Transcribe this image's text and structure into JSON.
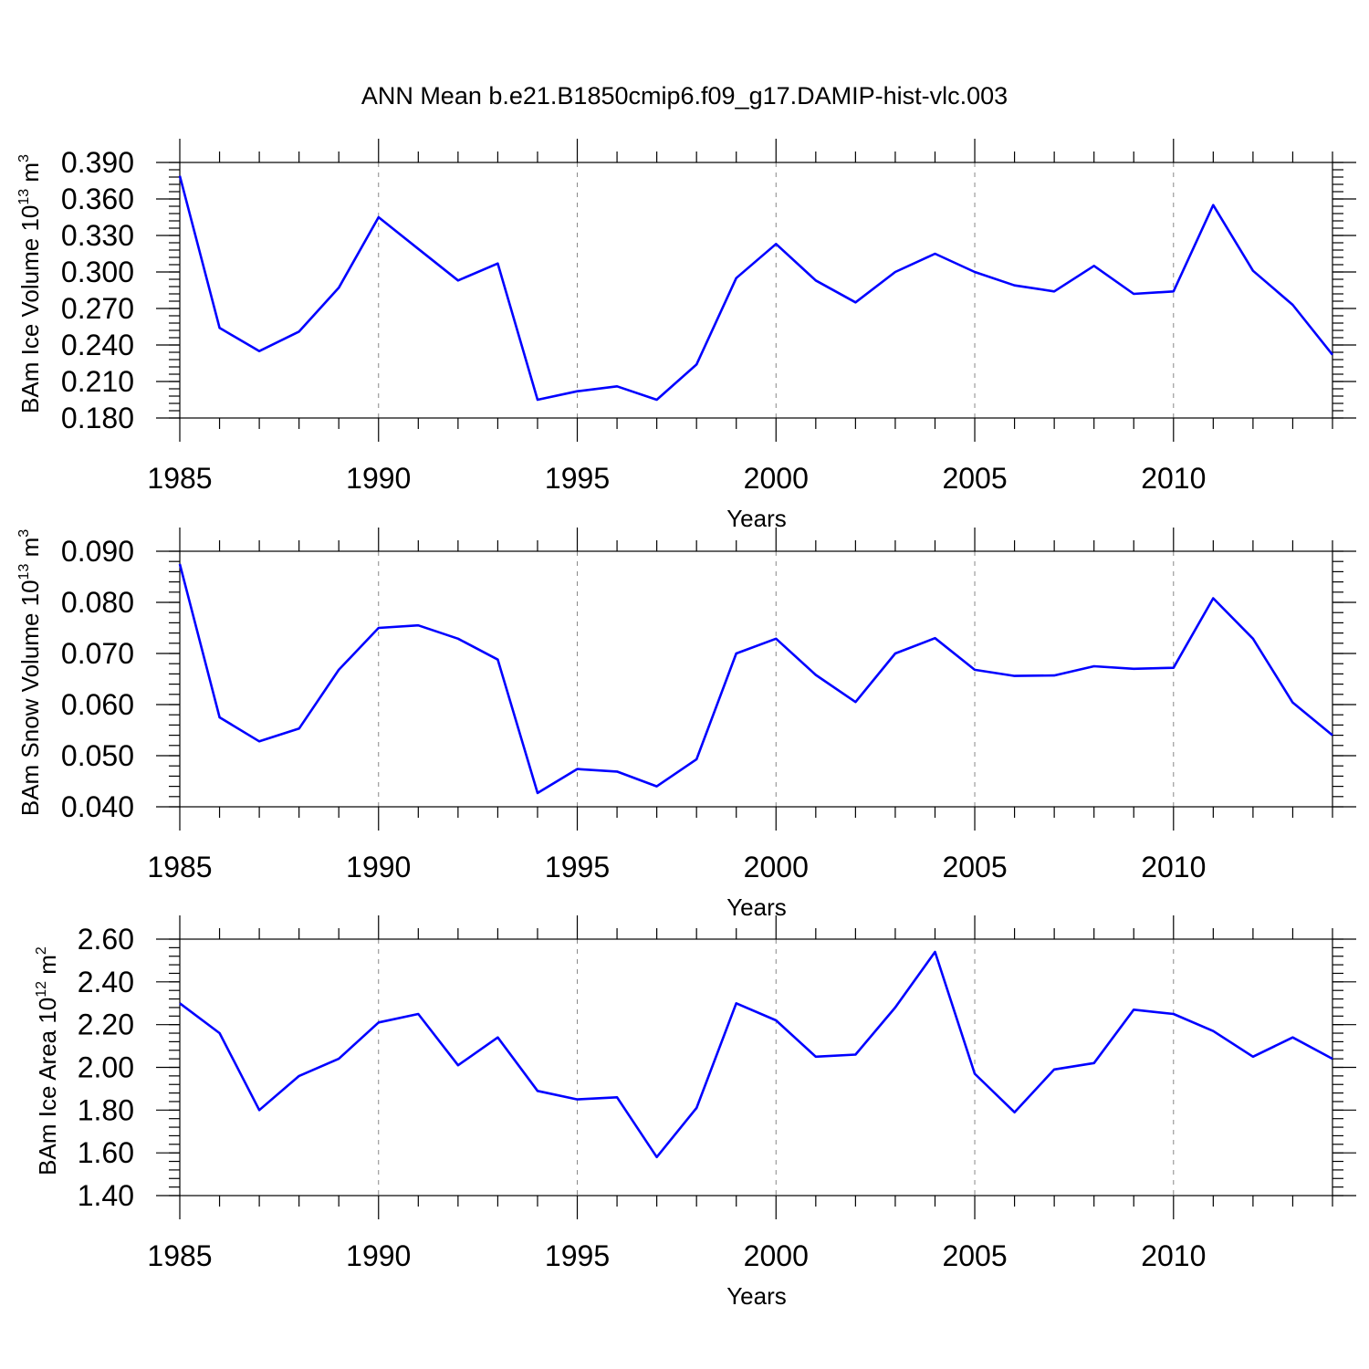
{
  "title": "ANN Mean b.e21.B1850cmip6.f09_g17.DAMIP-hist-vlc.003",
  "line_color": "#0000ff",
  "chart_data": [
    {
      "type": "line",
      "ylabel_main": "BAm Ice Volume 10",
      "ylabel_exp": "13",
      "ylabel_unit": " m",
      "ylabel_unit_exp": "3",
      "xlabel": "Years",
      "xlim": [
        1985,
        2014
      ],
      "ylim": [
        0.18,
        0.39
      ],
      "x_ticks": [
        1985,
        1990,
        1995,
        2000,
        2005,
        2010
      ],
      "y_ticks": [
        0.18,
        0.21,
        0.24,
        0.27,
        0.3,
        0.33,
        0.36,
        0.39
      ],
      "y_tick_labels": [
        "0.180",
        "0.210",
        "0.240",
        "0.270",
        "0.300",
        "0.330",
        "0.360",
        "0.390"
      ],
      "y_minor_step": 0.006,
      "grid": "vertical dashed at major x ticks",
      "series": [
        {
          "x": [
            1985,
            1986,
            1987,
            1988,
            1989,
            1990,
            1991,
            1992,
            1993,
            1994,
            1995,
            1996,
            1997,
            1998,
            1999,
            2000,
            2001,
            2002,
            2003,
            2004,
            2005,
            2006,
            2007,
            2008,
            2009,
            2010,
            2011,
            2012,
            2013,
            2014
          ],
          "values": [
            0.379,
            0.254,
            0.235,
            0.251,
            0.287,
            0.345,
            0.319,
            0.293,
            0.307,
            0.195,
            0.202,
            0.206,
            0.195,
            0.224,
            0.295,
            0.323,
            0.293,
            0.275,
            0.3,
            0.315,
            0.3,
            0.289,
            0.284,
            0.305,
            0.282,
            0.284,
            0.355,
            0.301,
            0.273,
            0.232
          ]
        }
      ]
    },
    {
      "type": "line",
      "ylabel_main": "BAm Snow Volume 10",
      "ylabel_exp": "13",
      "ylabel_unit": " m",
      "ylabel_unit_exp": "3",
      "xlabel": "Years",
      "xlim": [
        1985,
        2014
      ],
      "ylim": [
        0.04,
        0.09
      ],
      "x_ticks": [
        1985,
        1990,
        1995,
        2000,
        2005,
        2010
      ],
      "y_ticks": [
        0.04,
        0.05,
        0.06,
        0.07,
        0.08,
        0.09
      ],
      "y_tick_labels": [
        "0.040",
        "0.050",
        "0.060",
        "0.070",
        "0.080",
        "0.090"
      ],
      "y_minor_step": 0.002,
      "grid": "vertical dashed at major x ticks",
      "series": [
        {
          "x": [
            1985,
            1986,
            1987,
            1988,
            1989,
            1990,
            1991,
            1992,
            1993,
            1994,
            1995,
            1996,
            1997,
            1998,
            1999,
            2000,
            2001,
            2002,
            2003,
            2004,
            2005,
            2006,
            2007,
            2008,
            2009,
            2010,
            2011,
            2012,
            2013,
            2014
          ],
          "values": [
            0.0875,
            0.0575,
            0.0528,
            0.0553,
            0.0668,
            0.075,
            0.0755,
            0.0729,
            0.0688,
            0.0427,
            0.0474,
            0.0469,
            0.044,
            0.0493,
            0.07,
            0.0729,
            0.0658,
            0.0605,
            0.07,
            0.073,
            0.0668,
            0.0656,
            0.0657,
            0.0675,
            0.067,
            0.0672,
            0.0808,
            0.0729,
            0.0604,
            0.054
          ]
        }
      ]
    },
    {
      "type": "line",
      "ylabel_main": "BAm Ice Area 10",
      "ylabel_exp": "12",
      "ylabel_unit": " m",
      "ylabel_unit_exp": "2",
      "xlabel": "Years",
      "xlim": [
        1985,
        2014
      ],
      "ylim": [
        1.4,
        2.6
      ],
      "x_ticks": [
        1985,
        1990,
        1995,
        2000,
        2005,
        2010
      ],
      "y_ticks": [
        1.4,
        1.6,
        1.8,
        2.0,
        2.2,
        2.4,
        2.6
      ],
      "y_tick_labels": [
        "1.40",
        "1.60",
        "1.80",
        "2.00",
        "2.20",
        "2.40",
        "2.60"
      ],
      "y_minor_step": 0.04,
      "grid": "vertical dashed at major x ticks",
      "series": [
        {
          "x": [
            1985,
            1986,
            1987,
            1988,
            1989,
            1990,
            1991,
            1992,
            1993,
            1994,
            1995,
            1996,
            1997,
            1998,
            1999,
            2000,
            2001,
            2002,
            2003,
            2004,
            2005,
            2006,
            2007,
            2008,
            2009,
            2010,
            2011,
            2012,
            2013,
            2014
          ],
          "values": [
            2.3,
            2.16,
            1.8,
            1.96,
            2.04,
            2.21,
            2.25,
            2.01,
            2.14,
            1.89,
            1.85,
            1.86,
            1.58,
            1.81,
            2.3,
            2.22,
            2.05,
            2.06,
            2.28,
            2.54,
            1.97,
            1.79,
            1.99,
            2.02,
            2.27,
            2.25,
            2.17,
            2.05,
            2.14,
            2.04
          ]
        }
      ]
    }
  ]
}
